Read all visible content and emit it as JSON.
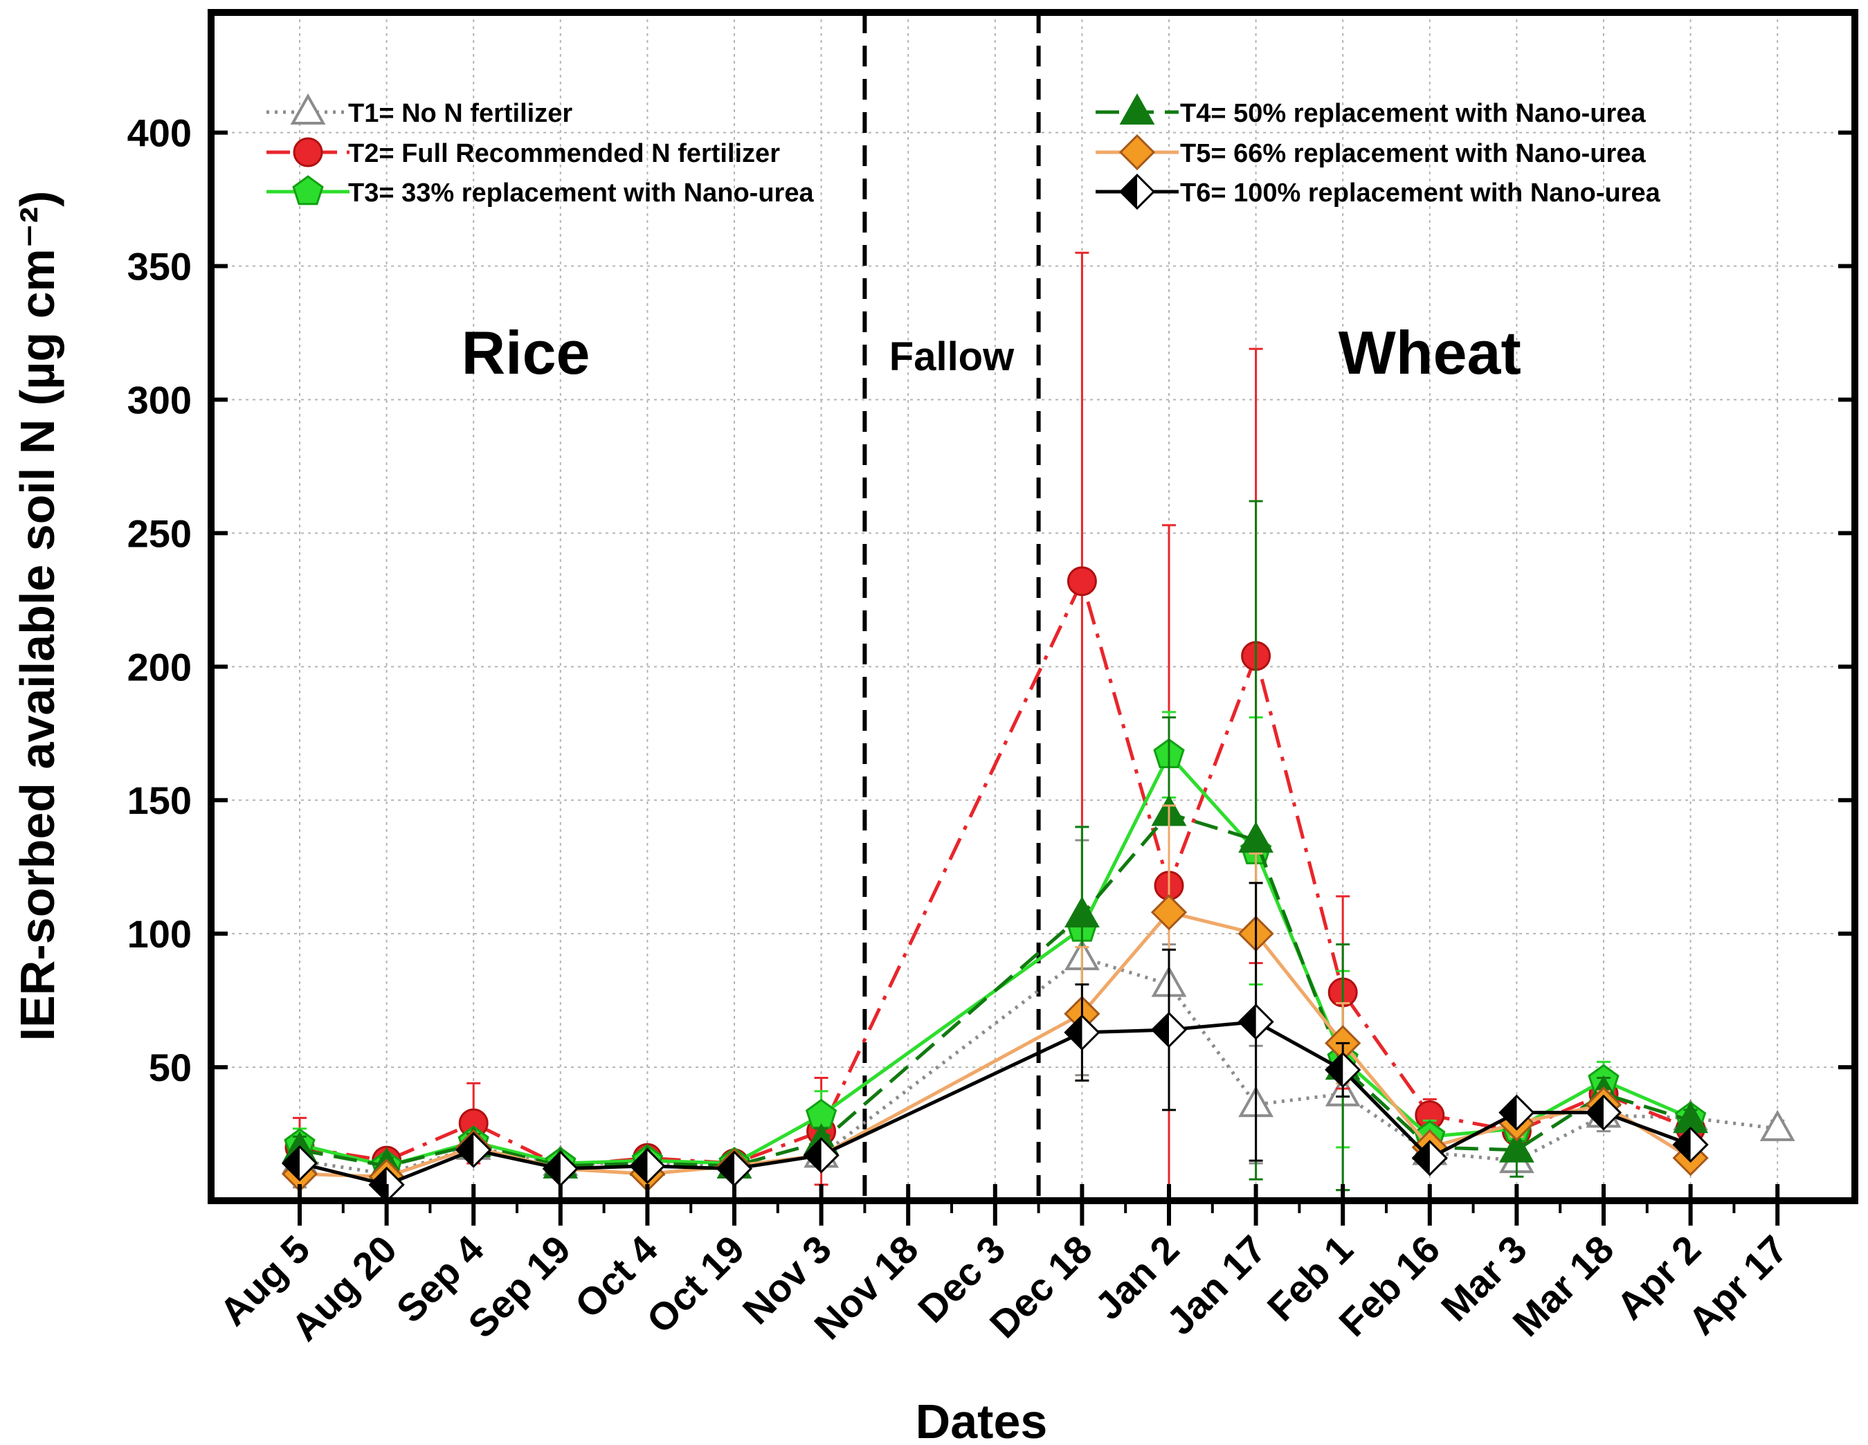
{
  "chart_data": {
    "type": "line",
    "xlabel": "Dates",
    "ylabel": "IER-sorbed available soil N (µg cm⁻²)",
    "ylim": [
      0,
      445
    ],
    "yticks": [
      50,
      100,
      150,
      200,
      250,
      300,
      350,
      400
    ],
    "grid": true,
    "legend_position": "top",
    "categories": [
      "Aug 5",
      "Aug 20",
      "Sep 4",
      "Sep 19",
      "Oct 4",
      "Oct 19",
      "Nov 3",
      "Nov 18",
      "Dec 3",
      "Dec 18",
      "Jan 2",
      "Jan 17",
      "Feb 1",
      "Feb 16",
      "Mar 3",
      "Mar 18",
      "Apr 2",
      "Apr 17"
    ],
    "phases": [
      {
        "label": "Rice",
        "at_index": 2.6
      },
      {
        "label": "Fallow",
        "at_index": 7.5
      },
      {
        "label": "Wheat",
        "at_index": 13.0
      }
    ],
    "phase_dividers_at_index": [
      6.5,
      8.5
    ],
    "series": [
      {
        "id": "T1",
        "name": "T1= No N fertilizer",
        "color": "#8c8c8c",
        "fill": "#ffffff",
        "marker": "triangle",
        "dash": "dot",
        "points": [
          [
            0,
            15
          ],
          [
            1,
            10
          ],
          [
            2,
            20
          ],
          [
            3,
            14
          ],
          [
            4,
            14
          ],
          [
            5,
            13
          ],
          [
            6,
            17
          ],
          [
            9,
            91
          ],
          [
            10,
            81
          ],
          [
            11,
            36
          ],
          [
            12,
            40
          ],
          [
            13,
            18
          ],
          [
            14,
            15
          ],
          [
            15,
            32
          ],
          [
            16,
            31
          ],
          [
            17,
            27
          ]
        ],
        "errors": [
          10,
          3,
          4,
          3,
          3,
          3,
          3,
          44,
          15,
          22,
          36,
          4,
          4,
          6,
          3,
          3
        ]
      },
      {
        "id": "T2",
        "name": "T2= Full Recommended N fertilizer",
        "color": "#e8262b",
        "fill": "#e8262b",
        "marker": "circle",
        "dash": "dashdot",
        "points": [
          [
            0,
            20
          ],
          [
            1,
            15
          ],
          [
            2,
            29
          ],
          [
            3,
            13
          ],
          [
            4,
            16
          ],
          [
            5,
            14
          ],
          [
            6,
            26
          ],
          [
            9,
            232
          ],
          [
            10,
            118
          ],
          [
            11,
            204
          ],
          [
            12,
            78
          ],
          [
            13,
            32
          ],
          [
            14,
            26
          ],
          [
            15,
            40
          ],
          [
            16,
            27
          ]
        ],
        "errors": [
          11,
          4,
          15,
          4,
          4,
          4,
          20,
          123,
          135,
          115,
          36,
          6,
          6,
          6,
          5
        ]
      },
      {
        "id": "T3",
        "name": "T3= 33% replacement with Nano-urea",
        "color": "#2ddd2d",
        "fill": "#2ddd2d",
        "marker": "pentagon",
        "dash": "solid",
        "points": [
          [
            0,
            21
          ],
          [
            1,
            13
          ],
          [
            2,
            22
          ],
          [
            3,
            14
          ],
          [
            4,
            15
          ],
          [
            5,
            14
          ],
          [
            6,
            32
          ],
          [
            9,
            102
          ],
          [
            10,
            167
          ],
          [
            11,
            131
          ],
          [
            12,
            53
          ],
          [
            13,
            24
          ],
          [
            14,
            27
          ],
          [
            15,
            45
          ],
          [
            16,
            31
          ]
        ],
        "errors": [
          6,
          4,
          4,
          3,
          3,
          3,
          9,
          38,
          16,
          50,
          33,
          6,
          5,
          7,
          4
        ]
      },
      {
        "id": "T4",
        "name": "T4= 50% replacement with Nano-urea",
        "color": "#107a10",
        "fill": "#107a10",
        "marker": "triangle",
        "dash": "dash",
        "points": [
          [
            0,
            19
          ],
          [
            1,
            13
          ],
          [
            2,
            21
          ],
          [
            3,
            13
          ],
          [
            4,
            14
          ],
          [
            5,
            13
          ],
          [
            6,
            22
          ],
          [
            9,
            107
          ],
          [
            10,
            145
          ],
          [
            11,
            135
          ],
          [
            12,
            50
          ],
          [
            13,
            20
          ],
          [
            14,
            19
          ],
          [
            15,
            40
          ],
          [
            16,
            30
          ]
        ],
        "errors": [
          5,
          3,
          4,
          3,
          3,
          3,
          5,
          33,
          36,
          127,
          46,
          4,
          10,
          6,
          4
        ]
      },
      {
        "id": "T5",
        "name": "T5= 66% replacement with Nano-urea",
        "color": "#f0a868",
        "fill": "#f39a22",
        "marker": "diamond",
        "dash": "solid",
        "points": [
          [
            0,
            10
          ],
          [
            1,
            9
          ],
          [
            2,
            20
          ],
          [
            3,
            12
          ],
          [
            4,
            10
          ],
          [
            5,
            13
          ],
          [
            6,
            17
          ],
          [
            9,
            70
          ],
          [
            10,
            108
          ],
          [
            11,
            100
          ],
          [
            12,
            59
          ],
          [
            13,
            20
          ],
          [
            14,
            29
          ],
          [
            15,
            36
          ],
          [
            16,
            16
          ]
        ],
        "errors": [
          3,
          3,
          3,
          3,
          3,
          3,
          4,
          25,
          40,
          30,
          15,
          4,
          5,
          5,
          3
        ]
      },
      {
        "id": "T6",
        "name": "T6= 100% replacement with Nano-urea",
        "color": "#000000",
        "fill": "#000000",
        "marker": "halfdiamond",
        "dash": "solid",
        "points": [
          [
            0,
            14
          ],
          [
            1,
            6
          ],
          [
            2,
            19
          ],
          [
            3,
            12
          ],
          [
            4,
            13
          ],
          [
            5,
            12
          ],
          [
            6,
            17
          ],
          [
            9,
            63
          ],
          [
            10,
            64
          ],
          [
            11,
            67
          ],
          [
            12,
            49
          ],
          [
            13,
            16
          ],
          [
            14,
            33
          ],
          [
            15,
            33
          ],
          [
            16,
            21
          ]
        ],
        "errors": [
          3,
          3,
          3,
          3,
          3,
          3,
          4,
          18,
          30,
          52,
          10,
          3,
          4,
          4,
          3
        ]
      }
    ]
  }
}
